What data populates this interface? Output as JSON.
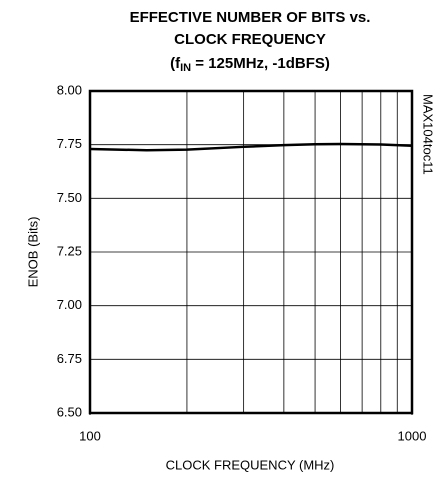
{
  "chart_data": {
    "type": "line",
    "title": [
      "EFFECTIVE NUMBER OF BITS vs.",
      "CLOCK FREQUENCY"
    ],
    "subtitle_parts": [
      "(f",
      "IN",
      " = 125MHz, -1dBFS)"
    ],
    "annotation": "MAX104toc11",
    "x_label": "CLOCK FREQUENCY (MHz)",
    "y_label": "ENOB (Bits)",
    "x_scale": "log",
    "xlim": [
      100,
      1000
    ],
    "xticks": [
      100,
      1000
    ],
    "x_minor_ticks": [
      200,
      300,
      400,
      500,
      600,
      700,
      800,
      900
    ],
    "ylim": [
      6.5,
      8.0
    ],
    "yticks": [
      {
        "value": 8.0,
        "label": "8.00"
      },
      {
        "value": 7.75,
        "label": "7.75"
      },
      {
        "value": 7.5,
        "label": "7.50"
      },
      {
        "value": 7.25,
        "label": "7.25"
      },
      {
        "value": 7.0,
        "label": "7.00"
      },
      {
        "value": 6.75,
        "label": "6.75"
      },
      {
        "value": 6.5,
        "label": "6.50"
      }
    ],
    "grid": true,
    "series": [
      {
        "color": "#000000",
        "x": [
          100,
          150,
          200,
          300,
          400,
          500,
          600,
          800,
          1000
        ],
        "values": [
          7.73,
          7.724,
          7.727,
          7.74,
          7.748,
          7.752,
          7.753,
          7.751,
          7.745
        ]
      }
    ]
  }
}
